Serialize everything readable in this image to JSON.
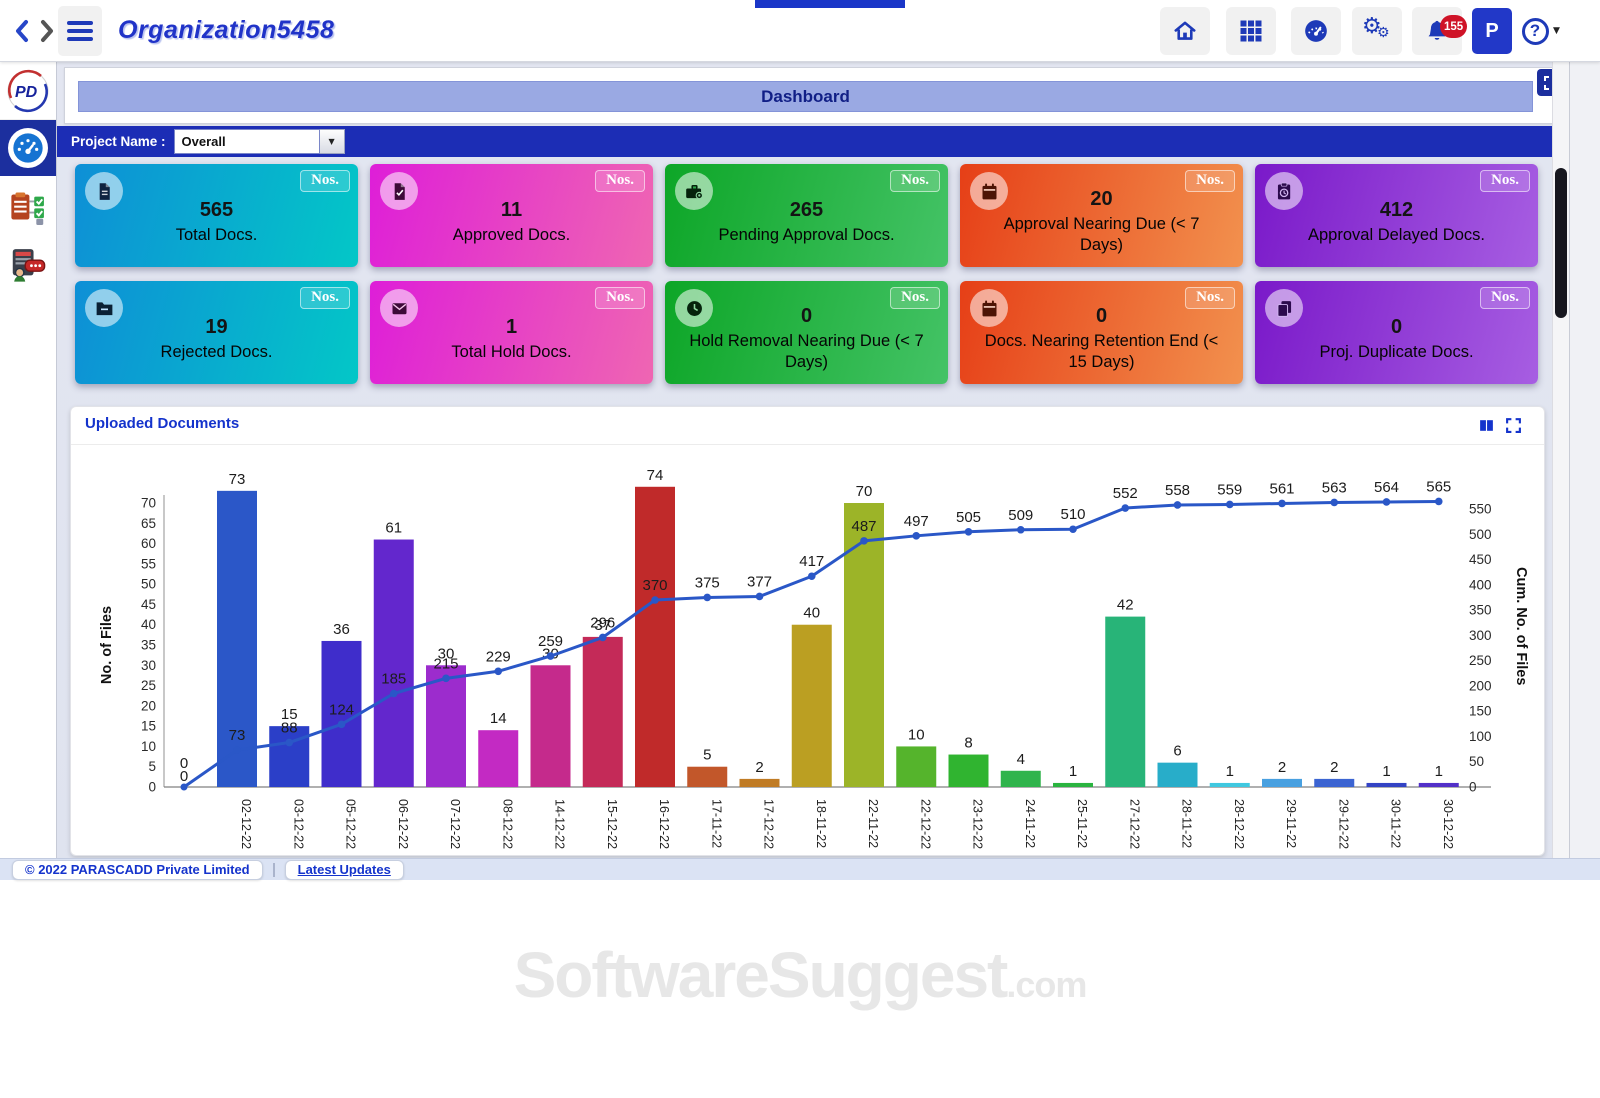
{
  "navbar": {
    "org_title": "Organization5458",
    "notification_badge": "155",
    "avatar_label": "P",
    "help_glyph": "?"
  },
  "dashboard": {
    "title": "Dashboard",
    "project_label": "Project Name :",
    "project_value": "Overall"
  },
  "cards": [
    {
      "key": "total-docs",
      "value": "565",
      "label": "Total Docs.",
      "unit": "Nos.",
      "icon": "file-icon",
      "from": "#0e8fd6",
      "to": "#03c7c7"
    },
    {
      "key": "approved-docs",
      "value": "11",
      "label": "Approved Docs.",
      "unit": "Nos.",
      "icon": "file-check-icon",
      "from": "#de1ed8",
      "to": "#ef66b2"
    },
    {
      "key": "pending-approval-docs",
      "value": "265",
      "label": "Pending Approval Docs.",
      "unit": "Nos.",
      "icon": "briefcase-gear-icon",
      "from": "#0da627",
      "to": "#44c366"
    },
    {
      "key": "approval-nearing-due",
      "value": "20",
      "label": "Approval Nearing Due (< 7 Days)",
      "unit": "Nos.",
      "icon": "calendar-icon",
      "from": "#e63f17",
      "to": "#f2914e"
    },
    {
      "key": "approval-delayed-docs",
      "value": "412",
      "label": "Approval Delayed Docs.",
      "unit": "Nos.",
      "icon": "clipboard-clock-icon",
      "from": "#7a19c9",
      "to": "#a75ee2"
    },
    {
      "key": "rejected-docs",
      "value": "19",
      "label": "Rejected Docs.",
      "unit": "Nos.",
      "icon": "folder-minus-icon",
      "from": "#0e8fd6",
      "to": "#03c7c7"
    },
    {
      "key": "total-hold-docs",
      "value": "1",
      "label": "Total Hold Docs.",
      "unit": "Nos.",
      "icon": "inbox-icon",
      "from": "#de1ed8",
      "to": "#ef66b2"
    },
    {
      "key": "hold-removal-nearing-due",
      "value": "0",
      "label": "Hold Removal Nearing Due (< 7 Days)",
      "unit": "Nos.",
      "icon": "clock-icon",
      "from": "#0da627",
      "to": "#44c366"
    },
    {
      "key": "docs-nearing-retention-end",
      "value": "0",
      "label": "Docs. Nearing Retention End (< 15 Days)",
      "unit": "Nos.",
      "icon": "calendar-icon",
      "from": "#e63f17",
      "to": "#f2914e"
    },
    {
      "key": "proj-duplicate-docs",
      "value": "0",
      "label": "Proj. Duplicate Docs.",
      "unit": "Nos.",
      "icon": "copy-icon",
      "from": "#7a19c9",
      "to": "#a75ee2"
    }
  ],
  "chart_section": {
    "title": "Uploaded Documents"
  },
  "chart_data": {
    "type": "bar",
    "subtype": "bar-line-combo",
    "title": "Uploaded Documents",
    "categories": [
      "02-12-22",
      "03-12-22",
      "05-12-22",
      "06-12-22",
      "07-12-22",
      "08-12-22",
      "14-12-22",
      "15-12-22",
      "16-12-22",
      "17-11-22",
      "17-12-22",
      "18-11-22",
      "22-11-22",
      "22-12-22",
      "23-12-22",
      "24-11-22",
      "25-11-22",
      "27-12-22",
      "28-11-22",
      "28-12-22",
      "29-11-22",
      "29-12-22",
      "30-11-22",
      "30-12-22"
    ],
    "series": [
      {
        "name": "No. of Files",
        "type": "bar",
        "values": [
          73,
          15,
          36,
          61,
          30,
          14,
          30,
          37,
          74,
          5,
          2,
          40,
          70,
          10,
          8,
          4,
          1,
          42,
          6,
          1,
          2,
          2,
          1,
          1
        ],
        "colors": [
          "#2b57c8",
          "#2b3fc8",
          "#3f2dcb",
          "#6327cd",
          "#9c2ccd",
          "#c32ac3",
          "#c52a8c",
          "#c42a58",
          "#c02a2a",
          "#c2572a",
          "#c07b24",
          "#bb9f22",
          "#9cb428",
          "#55b42c",
          "#30b430",
          "#30b44c",
          "#2ab440",
          "#28b478",
          "#28adc9",
          "#3fc8e0",
          "#48a0e0",
          "#3b64d2",
          "#3343c4",
          "#5230c8"
        ]
      },
      {
        "name": "Cum. No. of Files",
        "type": "line",
        "values": [
          73,
          88,
          124,
          185,
          215,
          229,
          259,
          296,
          370,
          375,
          377,
          417,
          487,
          497,
          505,
          509,
          510,
          552,
          558,
          559,
          561,
          563,
          564,
          565
        ],
        "color": "#2a57c7",
        "starts_at_origin": true,
        "origin_labels": [
          "0",
          "0"
        ]
      }
    ],
    "left_axis": {
      "label": "No. of Files",
      "ticks": [
        0,
        5,
        10,
        15,
        20,
        25,
        30,
        35,
        40,
        45,
        50,
        55,
        60,
        65,
        70
      ]
    },
    "right_axis": {
      "label": "Cum. No. of Files",
      "ticks": [
        0,
        50,
        100,
        150,
        200,
        250,
        300,
        350,
        400,
        450,
        500,
        550
      ]
    },
    "grid": false,
    "legend": false,
    "x_tick_rotation": 90
  },
  "footer": {
    "copyright": "© 2022 PARASCADD Private Limited",
    "link_label": "Latest Updates"
  },
  "watermark": {
    "text": "SoftwareSuggest",
    "suffix": ".com"
  }
}
